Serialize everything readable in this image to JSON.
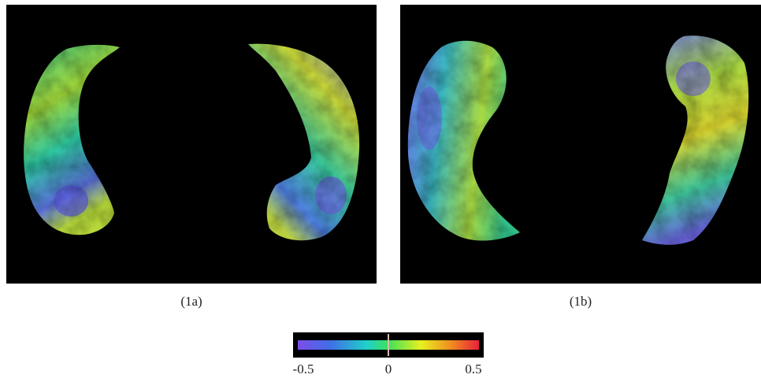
{
  "panels": [
    {
      "label": "(1a)"
    },
    {
      "label": "(1b)"
    }
  ],
  "colorbar": {
    "lim": [
      -0.5,
      0.5
    ],
    "ticks": [
      -0.5,
      0,
      0.5
    ]
  }
}
